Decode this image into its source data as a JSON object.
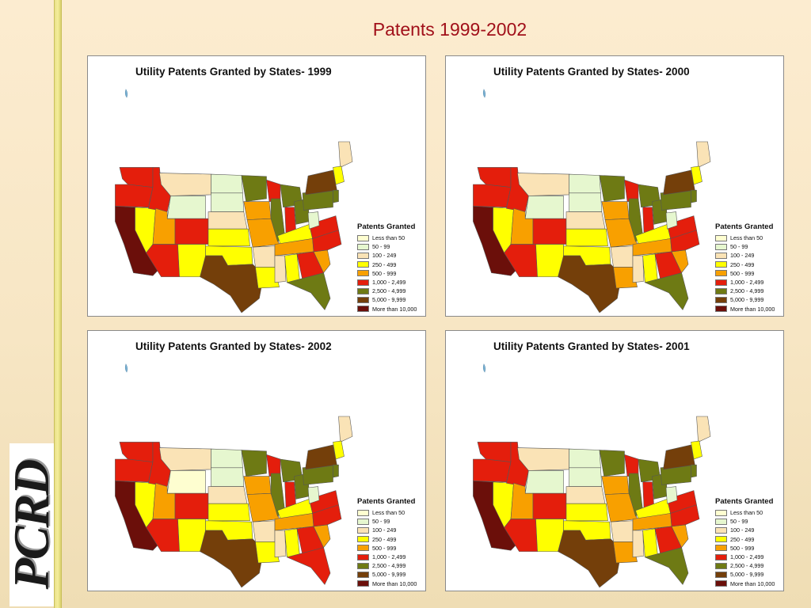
{
  "slide": {
    "title": "Patents 1999-2002",
    "logo_text": "PCRD"
  },
  "legend": {
    "title": "Patents Granted",
    "items": [
      {
        "label": "Less than 50",
        "color": "#fefed0"
      },
      {
        "label": "50 - 99",
        "color": "#e6f7cf"
      },
      {
        "label": "100 - 249",
        "color": "#fae3b6"
      },
      {
        "label": "250 - 499",
        "color": "#ffff00"
      },
      {
        "label": "500 - 999",
        "color": "#f8a000"
      },
      {
        "label": "1,000 - 2,499",
        "color": "#e41e0c"
      },
      {
        "label": "2,500 - 4,999",
        "color": "#6e7a14"
      },
      {
        "label": "5,000 - 9,999",
        "color": "#743f0a"
      },
      {
        "label": "More than 10,000",
        "color": "#6b0f0a"
      }
    ]
  },
  "maps": [
    {
      "title": "Utility Patents Granted by States- 1999",
      "states": {
        "WA": 5,
        "OR": 5,
        "CA": 8,
        "NV": 3,
        "ID": 5,
        "MT": 2,
        "WY": 1,
        "UT": 4,
        "AZ": 5,
        "CO": 5,
        "NM": 3,
        "ND": 1,
        "SD": 1,
        "NE": 2,
        "KS": 3,
        "OK": 3,
        "TX": 7,
        "MN": 6,
        "IA": 4,
        "MO": 4,
        "AR": 2,
        "LA": 3,
        "WI": 5,
        "IL": 6,
        "MI": 6,
        "IN": 5,
        "OH": 6,
        "KY": 3,
        "TN": 4,
        "MS": 2,
        "AL": 3,
        "GA": 5,
        "FL": 6,
        "SC": 4,
        "NC": 5,
        "VA": 5,
        "WV": 1,
        "PA": 6,
        "NY": 7,
        "NJ": 6,
        "ME": 2,
        "NE_STATES": 3
      }
    },
    {
      "title": "Utility Patents Granted by States- 2000",
      "states": {
        "WA": 5,
        "OR": 5,
        "CA": 8,
        "NV": 3,
        "ID": 5,
        "MT": 2,
        "WY": 1,
        "UT": 4,
        "AZ": 5,
        "CO": 5,
        "NM": 3,
        "ND": 1,
        "SD": 1,
        "NE": 2,
        "KS": 3,
        "OK": 3,
        "TX": 7,
        "MN": 6,
        "IA": 4,
        "MO": 4,
        "AR": 2,
        "LA": 4,
        "WI": 5,
        "IL": 6,
        "MI": 6,
        "IN": 5,
        "OH": 6,
        "KY": 3,
        "TN": 4,
        "MS": 2,
        "AL": 3,
        "GA": 5,
        "FL": 6,
        "SC": 4,
        "NC": 5,
        "VA": 5,
        "WV": 1,
        "PA": 6,
        "NY": 7,
        "NJ": 6,
        "ME": 2,
        "NE_STATES": 3
      }
    },
    {
      "title": "Utility Patents Granted by States- 2002",
      "states": {
        "WA": 5,
        "OR": 5,
        "CA": 8,
        "NV": 3,
        "ID": 5,
        "MT": 2,
        "WY": 0,
        "UT": 4,
        "AZ": 5,
        "CO": 5,
        "NM": 3,
        "ND": 1,
        "SD": 1,
        "NE": 2,
        "KS": 3,
        "OK": 3,
        "TX": 7,
        "MN": 6,
        "IA": 4,
        "MO": 4,
        "AR": 2,
        "LA": 3,
        "WI": 5,
        "IL": 6,
        "MI": 6,
        "IN": 5,
        "OH": 6,
        "KY": 3,
        "TN": 4,
        "MS": 2,
        "AL": 3,
        "GA": 5,
        "FL": 5,
        "SC": 4,
        "NC": 5,
        "VA": 5,
        "WV": 1,
        "PA": 6,
        "NY": 7,
        "NJ": 6,
        "ME": 2,
        "NE_STATES": 3
      }
    },
    {
      "title": "Utility Patents Granted by States- 2001",
      "states": {
        "WA": 5,
        "OR": 5,
        "CA": 8,
        "NV": 3,
        "ID": 5,
        "MT": 2,
        "WY": 1,
        "UT": 4,
        "AZ": 5,
        "CO": 5,
        "NM": 3,
        "ND": 1,
        "SD": 1,
        "NE": 2,
        "KS": 3,
        "OK": 3,
        "TX": 7,
        "MN": 6,
        "IA": 4,
        "MO": 4,
        "AR": 2,
        "LA": 4,
        "WI": 5,
        "IL": 6,
        "MI": 6,
        "IN": 5,
        "OH": 6,
        "KY": 3,
        "TN": 4,
        "MS": 2,
        "AL": 3,
        "GA": 5,
        "FL": 6,
        "SC": 4,
        "NC": 5,
        "VA": 5,
        "WV": 1,
        "PA": 6,
        "NY": 7,
        "NJ": 6,
        "ME": 2,
        "NE_STATES": 3
      }
    }
  ]
}
